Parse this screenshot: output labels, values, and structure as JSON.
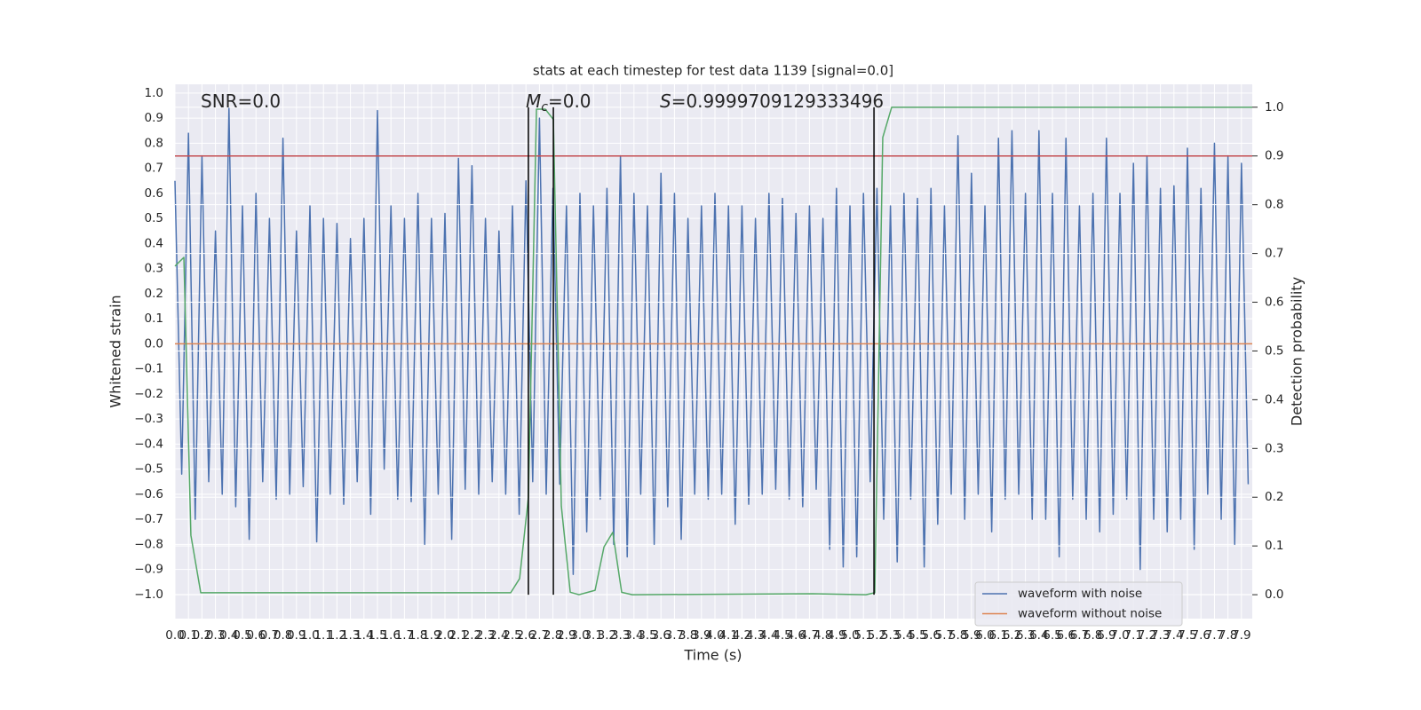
{
  "chart_data": {
    "type": "line",
    "title": "stats at each timestep for test data 1139 [signal=0.0]",
    "xlabel": "Time (s)",
    "ylabel": "Whitened strain",
    "y2label": "Detection probability",
    "xlim": [
      0,
      7.98
    ],
    "ylim": [
      -1.096,
      1.035
    ],
    "y2lim": [
      -0.049,
      1.047
    ],
    "grid": true,
    "background": "#eaeaf2",
    "legend": "lower right",
    "xticks": [
      {
        "value": 0,
        "label": "0.0"
      },
      0.1,
      0.2,
      0.3,
      0.4,
      0.5,
      0.6,
      0.7,
      0.8,
      0.9,
      {
        "value": 1,
        "label": "1.0"
      },
      1.1,
      1.2,
      1.3,
      1.4,
      1.5,
      1.6,
      1.7,
      1.8,
      1.9,
      {
        "value": 2,
        "label": "2.0"
      },
      2.1,
      2.2,
      2.3,
      2.4,
      2.5,
      2.6,
      2.7,
      2.8,
      2.9,
      {
        "value": 3,
        "label": "3.0"
      },
      3.1,
      3.2,
      3.3,
      3.4,
      3.5,
      3.6,
      3.7,
      3.8,
      3.9,
      {
        "value": 4,
        "label": "4.0"
      },
      4.1,
      4.2,
      4.3,
      4.4,
      4.5,
      4.6,
      4.7,
      4.8,
      4.9,
      {
        "value": 5,
        "label": "5.0"
      },
      5.1,
      5.2,
      5.3,
      5.4,
      5.5,
      5.6,
      5.7,
      5.8,
      5.9,
      {
        "value": 6,
        "label": "6.0"
      },
      6.1,
      6.2,
      6.3,
      6.4,
      6.5,
      6.6,
      6.7,
      6.8,
      6.9,
      {
        "value": 7,
        "label": "7.0"
      },
      7.1,
      7.2,
      7.3,
      7.4,
      7.5,
      7.6,
      7.7,
      7.8,
      7.9
    ],
    "yticks": [
      {
        "value": -1,
        "label": "−1.0"
      },
      {
        "value": -0.9,
        "label": "−0.9"
      },
      {
        "value": -0.8,
        "label": "−0.8"
      },
      {
        "value": -0.7,
        "label": "−0.7"
      },
      {
        "value": -0.6,
        "label": "−0.6"
      },
      {
        "value": -0.5,
        "label": "−0.5"
      },
      {
        "value": -0.4,
        "label": "−0.4"
      },
      {
        "value": -0.3,
        "label": "−0.3"
      },
      {
        "value": -0.2,
        "label": "−0.2"
      },
      {
        "value": -0.1,
        "label": "−0.1"
      },
      {
        "value": 0,
        "label": "0.0"
      },
      0.1,
      0.2,
      0.3,
      0.4,
      0.5,
      0.6,
      0.7,
      0.8,
      0.9,
      {
        "value": 1,
        "label": "1.0"
      }
    ],
    "y2ticks": [
      {
        "value": 0,
        "label": "0.0"
      },
      0.1,
      0.2,
      0.3,
      0.4,
      0.5,
      0.6,
      0.7,
      0.8,
      0.9,
      {
        "value": 1,
        "label": "1.0"
      }
    ],
    "series": [
      {
        "name": "waveform with noise",
        "color": "#4c72b0",
        "x": [
          0,
          0.05,
          0.1,
          0.15,
          0.2,
          0.25,
          0.3,
          0.35,
          0.4,
          0.45,
          0.5,
          0.55,
          0.6,
          0.65,
          0.7,
          0.75,
          0.8,
          0.85,
          0.9,
          0.95,
          1,
          1.05,
          1.1,
          1.15,
          1.2,
          1.25,
          1.3,
          1.35,
          1.4,
          1.45,
          1.5,
          1.55,
          1.6,
          1.65,
          1.7,
          1.75,
          1.8,
          1.85,
          1.9,
          1.95,
          2,
          2.05,
          2.1,
          2.15,
          2.2,
          2.25,
          2.3,
          2.35,
          2.4,
          2.45,
          2.5,
          2.55,
          2.6,
          2.65,
          2.7,
          2.75,
          2.8,
          2.85,
          2.9,
          2.95,
          3,
          3.05,
          3.1,
          3.15,
          3.2,
          3.25,
          3.3,
          3.35,
          3.4,
          3.45,
          3.5,
          3.55,
          3.6,
          3.65,
          3.7,
          3.75,
          3.8,
          3.85,
          3.9,
          3.95,
          4,
          4.05,
          4.1,
          4.15,
          4.2,
          4.25,
          4.3,
          4.35,
          4.4,
          4.45,
          4.5,
          4.55,
          4.6,
          4.65,
          4.7,
          4.75,
          4.8,
          4.85,
          4.9,
          4.95,
          5,
          5.05,
          5.1,
          5.15,
          5.2,
          5.25,
          5.3,
          5.35,
          5.4,
          5.45,
          5.5,
          5.55,
          5.6,
          5.65,
          5.7,
          5.75,
          5.8,
          5.85,
          5.9,
          5.95,
          6,
          6.05,
          6.1,
          6.15,
          6.2,
          6.25,
          6.3,
          6.35,
          6.4,
          6.45,
          6.5,
          6.55,
          6.6,
          6.65,
          6.7,
          6.75,
          6.8,
          6.85,
          6.9,
          6.95,
          7,
          7.05,
          7.1,
          7.15,
          7.2,
          7.25,
          7.3,
          7.35,
          7.4,
          7.45,
          7.5,
          7.55,
          7.6,
          7.65,
          7.7,
          7.75,
          7.8,
          7.85,
          7.9,
          7.95
        ],
        "values": [
          0.65,
          -0.52,
          0.84,
          -0.7,
          0.75,
          -0.55,
          0.45,
          -0.6,
          0.94,
          -0.65,
          0.55,
          -0.78,
          0.6,
          -0.55,
          0.5,
          -0.62,
          0.82,
          -0.6,
          0.45,
          -0.57,
          0.55,
          -0.79,
          0.5,
          -0.6,
          0.48,
          -0.64,
          0.42,
          -0.55,
          0.5,
          -0.68,
          0.93,
          -0.5,
          0.55,
          -0.62,
          0.5,
          -0.63,
          0.6,
          -0.8,
          0.5,
          -0.6,
          0.52,
          -0.78,
          0.74,
          -0.58,
          0.71,
          -0.6,
          0.5,
          -0.55,
          0.45,
          -0.6,
          0.55,
          -0.68,
          0.65,
          -0.55,
          0.9,
          -0.6,
          0.62,
          -0.56,
          0.55,
          -0.92,
          0.6,
          -0.75,
          0.55,
          -0.62,
          0.62,
          -0.8,
          0.75,
          -0.85,
          0.6,
          -0.6,
          0.55,
          -0.8,
          0.68,
          -0.65,
          0.6,
          -0.78,
          0.5,
          -0.6,
          0.55,
          -0.62,
          0.6,
          -0.6,
          0.55,
          -0.72,
          0.55,
          -0.64,
          0.5,
          -0.6,
          0.6,
          -0.58,
          0.58,
          -0.62,
          0.52,
          -0.65,
          0.55,
          -0.58,
          0.5,
          -0.82,
          0.62,
          -0.89,
          0.55,
          -0.85,
          0.6,
          -0.55,
          0.62,
          -0.7,
          0.55,
          -0.87,
          0.6,
          -0.62,
          0.58,
          -0.89,
          0.62,
          -0.72,
          0.55,
          -0.6,
          0.83,
          -0.7,
          0.68,
          -0.6,
          0.55,
          -0.75,
          0.82,
          -0.62,
          0.85,
          -0.6,
          0.6,
          -0.7,
          0.85,
          -0.7,
          0.6,
          -0.85,
          0.82,
          -0.62,
          0.55,
          -0.7,
          0.6,
          -0.75,
          0.82,
          -0.68,
          0.6,
          -0.62,
          0.72,
          -0.9,
          0.75,
          -0.7,
          0.62,
          -0.75,
          0.63,
          -0.7,
          0.78,
          -0.82,
          0.62,
          -0.6,
          0.8,
          -0.7,
          0.75,
          -0.8,
          0.72,
          -0.56
        ]
      },
      {
        "name": "waveform without noise",
        "color": "#dd8452",
        "x": [
          0,
          7.98
        ],
        "values": [
          0,
          0
        ]
      }
    ],
    "detection_probability": {
      "color": "#55a868",
      "axis": "y2",
      "x": [
        0,
        0.066,
        0.118,
        0.191,
        2.487,
        2.553,
        2.618,
        2.678,
        2.743,
        2.803,
        2.862,
        2.928,
        2.993,
        3.046,
        3.112,
        3.178,
        3.243,
        3.309,
        3.388,
        4.724,
        5.118,
        5.184,
        5.243,
        5.309,
        7.98
      ],
      "values": [
        0.674,
        0.692,
        0.122,
        0.004,
        0.004,
        0.033,
        0.2,
        0.996,
        0.996,
        0.975,
        0.182,
        0.005,
        0,
        0.004,
        0.009,
        0.098,
        0.128,
        0.005,
        0,
        0.002,
        0,
        0.004,
        0.938,
        1,
        1
      ]
    },
    "threshold": {
      "value": 0.9,
      "color": "#c44e52",
      "axis": "y2"
    },
    "vlines": {
      "x": [
        2.618,
        2.803,
        5.178
      ],
      "color": "#000000",
      "axis": "y2",
      "span": [
        0,
        1
      ]
    },
    "annotations": [
      {
        "text": "SNR=0.0"
      },
      {
        "symbol": "M",
        "subscript": "c",
        "text": "=0.0"
      },
      {
        "symbol": "S",
        "text": "=0.9999709129333496"
      }
    ]
  }
}
